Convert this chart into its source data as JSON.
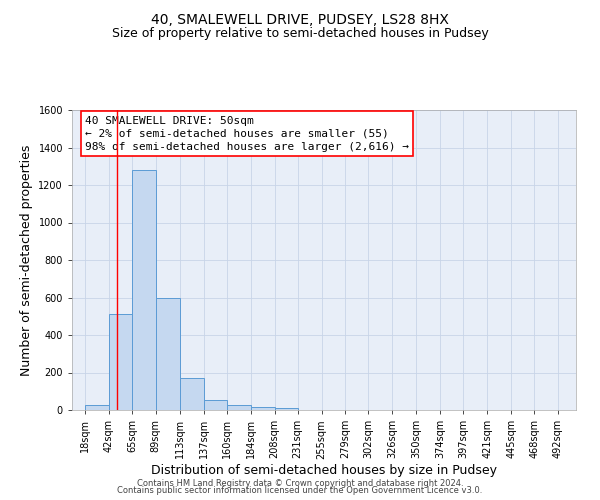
{
  "title1": "40, SMALEWELL DRIVE, PUDSEY, LS28 8HX",
  "title2": "Size of property relative to semi-detached houses in Pudsey",
  "xlabel": "Distribution of semi-detached houses by size in Pudsey",
  "ylabel": "Number of semi-detached properties",
  "bar_left_edges": [
    18,
    42,
    65,
    89,
    113,
    137,
    160,
    184,
    208,
    231,
    255,
    279,
    302,
    326,
    350,
    374,
    397,
    421,
    445,
    468
  ],
  "bar_heights": [
    25,
    510,
    1280,
    600,
    170,
    55,
    25,
    15,
    12,
    0,
    0,
    0,
    0,
    0,
    0,
    0,
    0,
    0,
    0,
    0
  ],
  "bar_widths": [
    24,
    23,
    24,
    24,
    24,
    23,
    24,
    24,
    23,
    24,
    24,
    23,
    24,
    24,
    24,
    23,
    24,
    24,
    23,
    24
  ],
  "xtick_labels": [
    "18sqm",
    "42sqm",
    "65sqm",
    "89sqm",
    "113sqm",
    "137sqm",
    "160sqm",
    "184sqm",
    "208sqm",
    "231sqm",
    "255sqm",
    "279sqm",
    "302sqm",
    "326sqm",
    "350sqm",
    "374sqm",
    "397sqm",
    "421sqm",
    "445sqm",
    "468sqm",
    "492sqm"
  ],
  "xtick_positions": [
    18,
    42,
    65,
    89,
    113,
    137,
    160,
    184,
    208,
    231,
    255,
    279,
    302,
    326,
    350,
    374,
    397,
    421,
    445,
    468,
    492
  ],
  "ylim": [
    0,
    1600
  ],
  "xlim": [
    5,
    510
  ],
  "yticks": [
    0,
    200,
    400,
    600,
    800,
    1000,
    1200,
    1400,
    1600
  ],
  "bar_color": "#c5d8f0",
  "bar_edge_color": "#5b9bd5",
  "red_line_x": 50,
  "annotation_line1": "40 SMALEWELL DRIVE: 50sqm",
  "annotation_line2": "← 2% of semi-detached houses are smaller (55)",
  "annotation_line3": "98% of semi-detached houses are larger (2,616) →",
  "bg_color": "#ffffff",
  "plot_bg_color": "#e8eef8",
  "grid_color": "#c8d4e8",
  "footer_line1": "Contains HM Land Registry data © Crown copyright and database right 2024.",
  "footer_line2": "Contains public sector information licensed under the Open Government Licence v3.0.",
  "title1_fontsize": 10,
  "title2_fontsize": 9,
  "axis_label_fontsize": 9,
  "tick_fontsize": 7,
  "annotation_fontsize": 8,
  "footer_fontsize": 6
}
